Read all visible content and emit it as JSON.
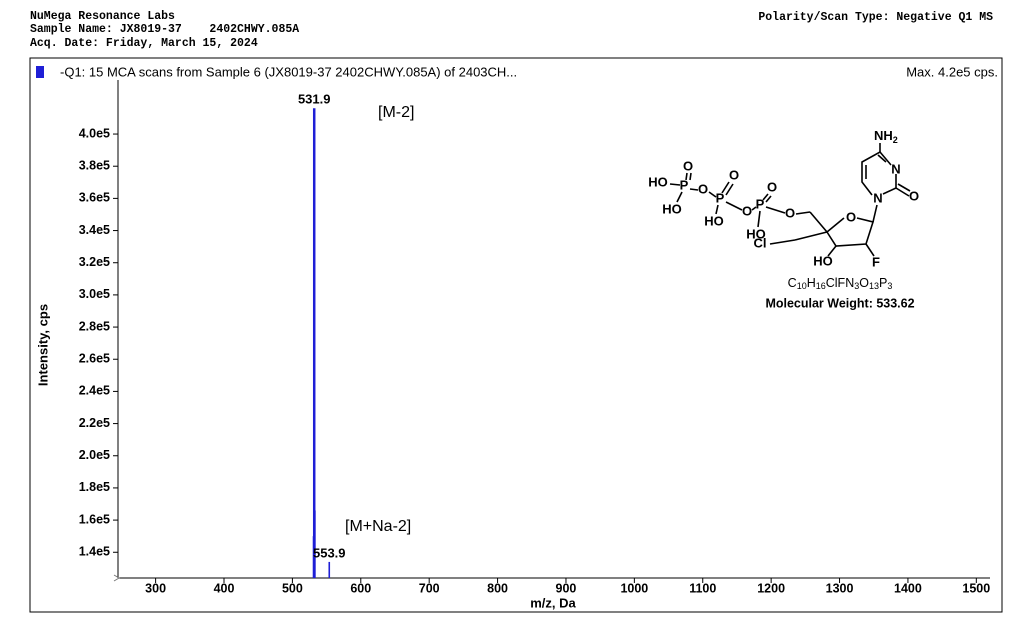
{
  "header": {
    "lab": "NuMega Resonance Labs",
    "sample": "Sample Name: JX8019-37    2402CHWY.085A",
    "date": "Acq. Date: Friday, March 15, 2024",
    "polarity": "Polarity/Scan Type: Negative Q1 MS"
  },
  "chart_data": {
    "type": "spectrum",
    "max_text": "Max. 4.2e5 cps.",
    "x_label": "m/z, Da",
    "y_label": "Intensity, cps",
    "x": [
      530.9,
      531.9,
      532.9,
      553.9
    ],
    "series": [
      {
        "name": "-Q1: 15 MCA scans from Sample 6 (JX8019-37  2402CHWY.085A) of 2403CH...",
        "color": "#1f1fd6",
        "values": [
          150000,
          416000,
          166000,
          134000
        ]
      }
    ],
    "annotations": [
      "[M-2]",
      "[M+Na-2]"
    ],
    "xlim": [
      245,
      1520
    ],
    "xticks": [
      300,
      400,
      500,
      600,
      700,
      800,
      900,
      1000,
      1100,
      1200,
      1300,
      1400,
      1500
    ],
    "ylim": [
      124000,
      433600
    ],
    "yticks": [
      {
        "value": 140000,
        "label": "1.4e5"
      },
      {
        "value": 160000,
        "label": "1.6e5"
      },
      {
        "value": 180000,
        "label": "1.8e5"
      },
      {
        "value": 200000,
        "label": "2.0e5"
      },
      {
        "value": 220000,
        "label": "2.2e5"
      },
      {
        "value": 240000,
        "label": "2.4e5"
      },
      {
        "value": 260000,
        "label": "2.6e5"
      },
      {
        "value": 280000,
        "label": "2.8e5"
      },
      {
        "value": 300000,
        "label": "3.0e5"
      },
      {
        "value": 320000,
        "label": "3.2e5"
      },
      {
        "value": 340000,
        "label": "3.4e5"
      },
      {
        "value": 360000,
        "label": "3.6e5"
      },
      {
        "value": 380000,
        "label": "3.8e5"
      },
      {
        "value": 400000,
        "label": "4.0e5"
      }
    ]
  },
  "structure": {
    "atoms": [
      "HO",
      "P",
      "O",
      "O",
      "HO",
      "P",
      "O",
      "O",
      "HO",
      "P",
      "O",
      "HO",
      "O",
      "O",
      "N",
      "N",
      "O",
      "Cl",
      "HO",
      "F"
    ],
    "nh2": [
      "NH",
      "2"
    ],
    "formula": [
      "C",
      "10",
      "H",
      "16",
      "ClFN",
      "3",
      "O",
      "13",
      "P",
      "3"
    ],
    "mw": "Molecular Weight: 533.62"
  }
}
